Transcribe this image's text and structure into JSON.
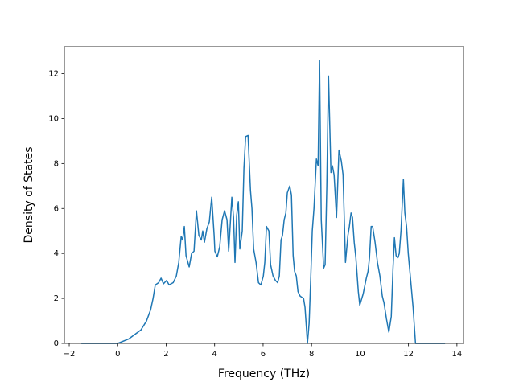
{
  "chart_data": {
    "type": "line",
    "x_label": "Frequency (THz)",
    "y_label": "Density of States",
    "color": "#1f77b4",
    "x": [
      -1.5,
      0.0,
      0.46,
      0.96,
      1.19,
      1.36,
      1.46,
      1.55,
      1.69,
      1.79,
      1.89,
      2.02,
      2.12,
      2.29,
      2.42,
      2.52,
      2.62,
      2.68,
      2.75,
      2.82,
      2.95,
      3.05,
      3.15,
      3.25,
      3.35,
      3.45,
      3.51,
      3.58,
      3.68,
      3.78,
      3.88,
      3.98,
      4.01,
      4.11,
      4.21,
      4.31,
      4.41,
      4.51,
      4.58,
      4.71,
      4.78,
      4.84,
      4.91,
      4.98,
      5.04,
      5.14,
      5.21,
      5.28,
      5.38,
      5.48,
      5.54,
      5.61,
      5.71,
      5.81,
      5.91,
      6.01,
      6.07,
      6.14,
      6.24,
      6.31,
      6.41,
      6.51,
      6.6,
      6.67,
      6.74,
      6.8,
      6.87,
      6.94,
      7.0,
      7.1,
      7.17,
      7.24,
      7.3,
      7.37,
      7.44,
      7.53,
      7.67,
      7.73,
      7.8,
      7.83,
      7.9,
      7.97,
      8.03,
      8.1,
      8.2,
      8.27,
      8.33,
      8.4,
      8.5,
      8.56,
      8.63,
      8.7,
      8.8,
      8.86,
      8.93,
      9.03,
      9.13,
      9.23,
      9.3,
      9.4,
      9.5,
      9.56,
      9.63,
      9.69,
      9.76,
      9.83,
      9.93,
      9.99,
      10.13,
      10.26,
      10.33,
      10.39,
      10.46,
      10.52,
      10.62,
      10.72,
      10.82,
      10.92,
      10.99,
      11.09,
      11.19,
      11.29,
      11.36,
      11.42,
      11.49,
      11.56,
      11.62,
      11.69,
      11.79,
      11.85,
      11.92,
      11.99,
      12.09,
      12.19,
      12.29,
      13.51
    ],
    "values": [
      0,
      0,
      0.2,
      0.6,
      1.0,
      1.5,
      2.0,
      2.6,
      2.7,
      2.9,
      2.65,
      2.8,
      2.6,
      2.7,
      3.0,
      3.6,
      4.75,
      4.6,
      5.2,
      3.9,
      3.4,
      4.0,
      4.1,
      5.9,
      4.8,
      4.6,
      5.0,
      4.5,
      5.1,
      5.4,
      6.5,
      4.8,
      4.1,
      3.85,
      4.3,
      5.5,
      5.9,
      5.5,
      4.1,
      6.5,
      5.6,
      3.6,
      5.7,
      6.3,
      4.2,
      5.0,
      7.8,
      9.2,
      9.25,
      6.8,
      6.0,
      4.2,
      3.6,
      2.7,
      2.6,
      3.0,
      3.6,
      5.2,
      5.0,
      3.5,
      3.0,
      2.8,
      2.7,
      3.0,
      4.6,
      4.8,
      5.5,
      5.8,
      6.7,
      7.0,
      6.6,
      3.9,
      3.2,
      3.0,
      2.3,
      2.1,
      2.0,
      1.6,
      0.5,
      0,
      0.9,
      3.0,
      5.0,
      6.0,
      8.2,
      7.9,
      12.6,
      5.5,
      3.35,
      3.5,
      7.0,
      11.9,
      7.6,
      7.9,
      7.5,
      5.6,
      8.6,
      8.1,
      7.5,
      3.6,
      4.8,
      5.2,
      5.8,
      5.6,
      4.5,
      3.8,
      2.3,
      1.7,
      2.2,
      2.9,
      3.2,
      3.8,
      5.2,
      5.2,
      4.5,
      3.6,
      3.0,
      2.1,
      1.8,
      1.1,
      0.5,
      1.2,
      3.3,
      4.7,
      3.9,
      3.8,
      4.0,
      5.0,
      7.3,
      5.8,
      5.2,
      4.0,
      2.8,
      1.6,
      0,
      0
    ],
    "xlim": [
      -2.2,
      14.27
    ],
    "ylim": [
      0,
      13.2
    ],
    "xticks": [
      {
        "value": -2,
        "label": "−2"
      },
      0,
      2,
      4,
      6,
      8,
      10,
      12,
      14
    ],
    "yticks": [
      0,
      2,
      4,
      6,
      8,
      10,
      12
    ]
  }
}
